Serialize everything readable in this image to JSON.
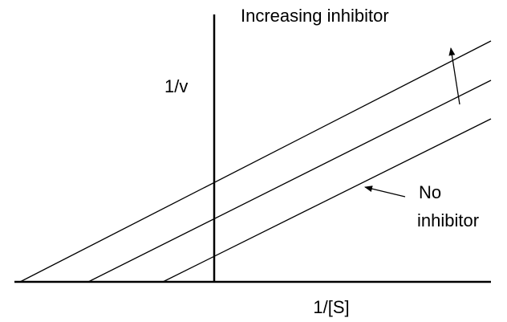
{
  "diagram": {
    "y_axis_label": "1/v",
    "x_axis_label": "1/[S]",
    "annotations": {
      "increasing": "Increasing inhibitor",
      "none": [
        "No",
        "inhibitor"
      ]
    }
  }
}
